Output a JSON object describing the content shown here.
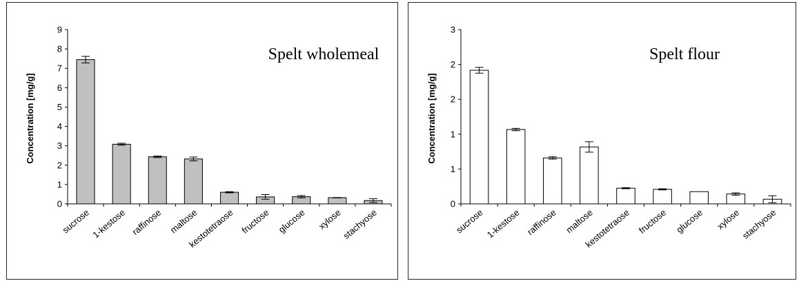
{
  "chart_data": [
    {
      "type": "bar",
      "title": "Spelt wholemeal",
      "xlabel": "",
      "ylabel": "Concentration [mg/g]",
      "ylim": [
        0,
        9
      ],
      "yticks": [
        "0",
        "1",
        "2",
        "3",
        "4",
        "5",
        "6",
        "7",
        "8",
        "9"
      ],
      "categories": [
        "sucrose",
        "1-kestose",
        "raffinose",
        "maltose",
        "kestotetraose",
        "fructose",
        "glucose",
        "xylose",
        "stachyose"
      ],
      "values": [
        7.45,
        3.08,
        2.43,
        2.32,
        0.6,
        0.36,
        0.37,
        0.32,
        0.17
      ],
      "errors": [
        0.17,
        0.05,
        0.04,
        0.1,
        0.03,
        0.12,
        0.06,
        0.01,
        0.1
      ],
      "bar_color": "#c0c0c0",
      "grid": false,
      "legend": "none"
    },
    {
      "type": "bar",
      "title": "Spelt flour",
      "xlabel": "",
      "ylabel": "Concentration [mg/g]",
      "ylim": [
        0,
        3
      ],
      "yticks": [
        "0",
        "1",
        "1",
        "2",
        "2",
        "3"
      ],
      "categories": [
        "sucrose",
        "1-kestose",
        "raffinose",
        "maltose",
        "kestotetraose",
        "fructose",
        "glucose",
        "xylose",
        "stachyose"
      ],
      "values": [
        2.3,
        1.28,
        0.79,
        0.98,
        0.27,
        0.25,
        0.21,
        0.17,
        0.08
      ],
      "errors": [
        0.05,
        0.02,
        0.02,
        0.09,
        0.01,
        0.01,
        0.0,
        0.02,
        0.06
      ],
      "bar_color": "#ffffff",
      "grid": false,
      "legend": "none"
    }
  ]
}
